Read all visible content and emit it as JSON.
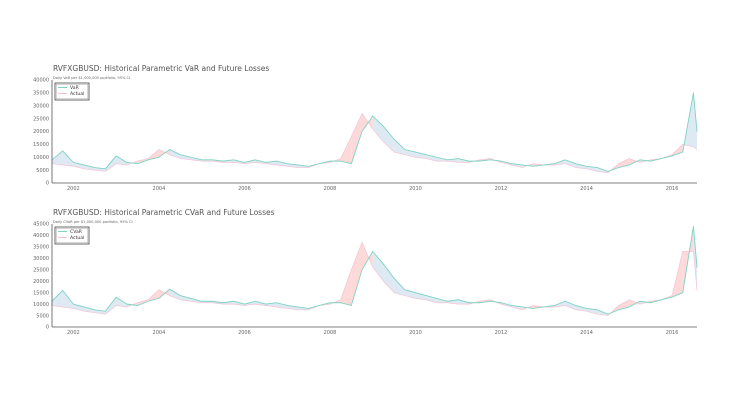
{
  "chart_data": [
    {
      "type": "area",
      "title": "RVFXGBUSD: Historical Parametric VaR and Future Losses",
      "subtitle": "Daily VaR per $1,000,000 portfolio, 95% CI",
      "ylim": [
        0,
        40000
      ],
      "yticks": [
        0,
        5000,
        10000,
        15000,
        20000,
        25000,
        30000,
        35000,
        40000
      ],
      "xticks": [
        "2002",
        "2004",
        "2006",
        "2008",
        "2010",
        "2012",
        "2014",
        "2016"
      ],
      "xlim": [
        "2001-07",
        "2016-08"
      ],
      "grid": false,
      "legend": "top-left",
      "x": [
        "2001-07",
        "2001-10",
        "2002-01",
        "2002-04",
        "2002-07",
        "2002-10",
        "2003-01",
        "2003-04",
        "2003-07",
        "2003-10",
        "2004-01",
        "2004-04",
        "2004-07",
        "2004-10",
        "2005-01",
        "2005-04",
        "2005-07",
        "2005-10",
        "2006-01",
        "2006-04",
        "2006-07",
        "2006-10",
        "2007-01",
        "2007-04",
        "2007-07",
        "2007-10",
        "2008-01",
        "2008-04",
        "2008-07",
        "2008-10",
        "2009-01",
        "2009-04",
        "2009-07",
        "2009-10",
        "2010-01",
        "2010-04",
        "2010-07",
        "2010-10",
        "2011-01",
        "2011-04",
        "2011-07",
        "2011-10",
        "2012-01",
        "2012-04",
        "2012-07",
        "2012-10",
        "2013-01",
        "2013-04",
        "2013-07",
        "2013-10",
        "2014-01",
        "2014-04",
        "2014-07",
        "2014-10",
        "2015-01",
        "2015-04",
        "2015-07",
        "2015-10",
        "2016-01",
        "2016-04",
        "2016-07",
        "2016-08"
      ],
      "series": [
        {
          "name": "VaR",
          "color": "#7fd3c3",
          "values": [
            9000,
            12500,
            8000,
            7000,
            6000,
            5500,
            10500,
            8000,
            7500,
            9000,
            10000,
            13000,
            11000,
            10000,
            9000,
            9000,
            8500,
            9000,
            8000,
            9000,
            8000,
            8500,
            7500,
            7000,
            6500,
            7500,
            8500,
            8500,
            7500,
            20000,
            26000,
            22000,
            17000,
            13000,
            12000,
            11000,
            10000,
            9000,
            9500,
            8500,
            8500,
            9000,
            8500,
            7500,
            7000,
            6500,
            7000,
            7500,
            9000,
            7500,
            6500,
            6000,
            4500,
            6000,
            7000,
            9000,
            8500,
            9500,
            10500,
            12000,
            35000,
            20000
          ]
        },
        {
          "name": "Actual",
          "color": "#f4c4d2",
          "values": [
            7500,
            7000,
            6500,
            5500,
            5000,
            4500,
            7500,
            7000,
            8500,
            9500,
            13000,
            11000,
            9500,
            9000,
            8500,
            8500,
            8000,
            8000,
            7500,
            8000,
            7500,
            7000,
            6500,
            6000,
            6000,
            7500,
            8000,
            9500,
            18000,
            27000,
            21000,
            16000,
            12000,
            11000,
            10000,
            9500,
            8500,
            8500,
            8000,
            8000,
            9000,
            9500,
            8000,
            7000,
            6000,
            7500,
            7000,
            7000,
            7500,
            6000,
            5500,
            4500,
            4000,
            7500,
            9500,
            8000,
            9000,
            9500,
            11000,
            15000,
            14000,
            13000
          ]
        }
      ]
    },
    {
      "type": "area",
      "title": "RVFXGBUSD: Historical Parametric CVaR and Future Losses",
      "subtitle": "Daily CVaR per $1,000,000 portfolio, 95% CI",
      "ylim": [
        0,
        45000
      ],
      "yticks": [
        0,
        5000,
        10000,
        15000,
        20000,
        25000,
        30000,
        35000,
        40000,
        45000
      ],
      "xticks": [
        "2002",
        "2004",
        "2006",
        "2008",
        "2010",
        "2012",
        "2014",
        "2016"
      ],
      "xlim": [
        "2001-07",
        "2016-08"
      ],
      "grid": false,
      "legend": "top-left",
      "x": [
        "2001-07",
        "2001-10",
        "2002-01",
        "2002-04",
        "2002-07",
        "2002-10",
        "2003-01",
        "2003-04",
        "2003-07",
        "2003-10",
        "2004-01",
        "2004-04",
        "2004-07",
        "2004-10",
        "2005-01",
        "2005-04",
        "2005-07",
        "2005-10",
        "2006-01",
        "2006-04",
        "2006-07",
        "2006-10",
        "2007-01",
        "2007-04",
        "2007-07",
        "2007-10",
        "2008-01",
        "2008-04",
        "2008-07",
        "2008-10",
        "2009-01",
        "2009-04",
        "2009-07",
        "2009-10",
        "2010-01",
        "2010-04",
        "2010-07",
        "2010-10",
        "2011-01",
        "2011-04",
        "2011-07",
        "2011-10",
        "2012-01",
        "2012-04",
        "2012-07",
        "2012-10",
        "2013-01",
        "2013-04",
        "2013-07",
        "2013-10",
        "2014-01",
        "2014-04",
        "2014-07",
        "2014-10",
        "2015-01",
        "2015-04",
        "2015-07",
        "2015-10",
        "2016-01",
        "2016-04",
        "2016-07",
        "2016-08"
      ],
      "series": [
        {
          "name": "CVaR",
          "color": "#7fd3c3",
          "values": [
            11250,
            16000,
            10000,
            8750,
            7500,
            6900,
            13000,
            10000,
            9400,
            11250,
            12500,
            16500,
            13750,
            12500,
            11250,
            11250,
            10600,
            11250,
            10000,
            11250,
            10000,
            10600,
            9400,
            8750,
            8100,
            9400,
            10600,
            10600,
            9400,
            25000,
            33000,
            27500,
            21250,
            16250,
            15000,
            13750,
            12500,
            11250,
            11900,
            10600,
            10600,
            11250,
            10600,
            9400,
            8750,
            8100,
            8750,
            9400,
            11250,
            9400,
            8100,
            7500,
            5600,
            7500,
            8750,
            11250,
            10600,
            11900,
            13100,
            15000,
            44000,
            26000
          ]
        },
        {
          "name": "Actual",
          "color": "#f4c4d2",
          "values": [
            9400,
            8750,
            8100,
            6900,
            6250,
            5600,
            9400,
            8750,
            10600,
            11900,
            16250,
            13750,
            11900,
            11250,
            10600,
            10600,
            10000,
            10000,
            9400,
            10000,
            9400,
            8750,
            8100,
            7500,
            7500,
            9400,
            10000,
            11900,
            25000,
            37000,
            26250,
            20000,
            15000,
            13750,
            12500,
            11900,
            10600,
            10600,
            10000,
            10000,
            11250,
            11900,
            10000,
            8750,
            7500,
            9400,
            8750,
            8750,
            9400,
            7500,
            6900,
            5600,
            5000,
            9400,
            11900,
            10000,
            11250,
            11900,
            13750,
            33000,
            33000,
            16000
          ]
        }
      ]
    }
  ],
  "colors": {
    "fill_above": "#fdd9d9",
    "fill_below": "#dde9f3"
  }
}
